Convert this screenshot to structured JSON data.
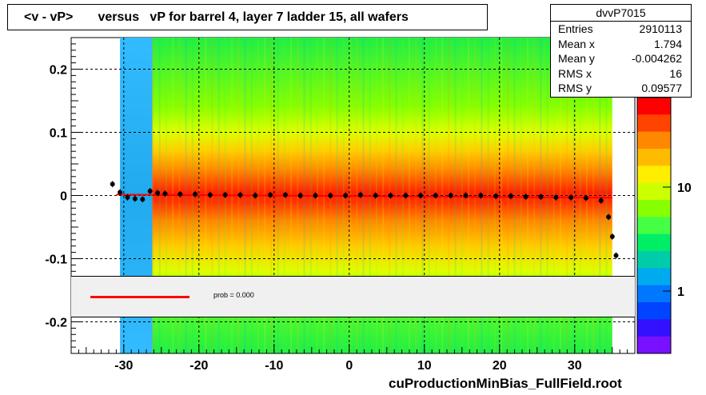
{
  "title": "<v - vP>       versus   vP for barrel 4, layer 7 ladder 15, all wafers",
  "stats": {
    "name": "dvvP7015",
    "rows": [
      {
        "key": "Entries",
        "value": "2910113"
      },
      {
        "key": "Mean x",
        "value": "1.794"
      },
      {
        "key": "Mean y",
        "value": "-0.004262"
      },
      {
        "key": "RMS x",
        "value": "16"
      },
      {
        "key": "RMS y",
        "value": "0.09577"
      }
    ]
  },
  "legend": {
    "label": "prob = 0.000",
    "line_color": "#ff0000"
  },
  "footer": "cuProductionMinBias_FullField.root",
  "chart_data": {
    "type": "heatmap",
    "title": "<v - vP>       versus   vP for barrel 4, layer 7 ladder 15, all wafers",
    "xlim": [
      -37,
      38
    ],
    "ylim": [
      -0.25,
      0.25
    ],
    "x_ticks": [
      -30,
      -20,
      -10,
      0,
      10,
      20,
      30
    ],
    "y_ticks": [
      0.2,
      0.1,
      0,
      -0.1,
      -0.2
    ],
    "y_tick_labels": [
      "0.2",
      "0.1",
      "0",
      "-0.1",
      "-0.2"
    ],
    "grid": true,
    "log_z": true,
    "z_ticks": [
      1,
      10
    ],
    "z_tick_labels": [
      "1",
      "10"
    ],
    "palette": [
      "#ff0000",
      "#ff4400",
      "#ff8800",
      "#ffbb00",
      "#ffee00",
      "#ccff00",
      "#88ff00",
      "#44ff44",
      "#00ee66",
      "#00ccaa",
      "#00aaee",
      "#0077ff",
      "#0044ff",
      "#3311ff",
      "#7711ff"
    ],
    "profile_points": {
      "x": [
        -31.5,
        -30.5,
        -29.5,
        -28.5,
        -27.5,
        -26.5,
        -25.5,
        -24.5,
        -22.5,
        -20.5,
        -18.5,
        -16.5,
        -14.5,
        -12.5,
        -10.5,
        -8.5,
        -6.5,
        -4.5,
        -2.5,
        -0.5,
        1.5,
        3.5,
        5.5,
        7.5,
        9.5,
        11.5,
        13.5,
        15.5,
        17.5,
        19.5,
        21.5,
        23.5,
        25.5,
        27.5,
        29.5,
        31.5,
        33.5,
        34.5,
        35.0,
        35.5
      ],
      "y": [
        0.018,
        0.005,
        -0.003,
        -0.005,
        -0.006,
        0.007,
        0.004,
        0.003,
        0.002,
        0.002,
        0.001,
        0.001,
        0.001,
        0.0,
        0.001,
        0.001,
        0.0,
        0.0,
        0.0,
        0.0,
        0.001,
        0.0,
        0.0,
        0.0,
        0.0,
        0.0,
        0.0,
        0.0,
        0.0,
        -0.001,
        -0.001,
        -0.002,
        -0.002,
        -0.003,
        -0.003,
        -0.004,
        -0.008,
        -0.034,
        -0.065,
        -0.095
      ]
    },
    "fit_line": {
      "x": [
        -31,
        35
      ],
      "y": [
        0.0015,
        -0.0035
      ]
    }
  }
}
